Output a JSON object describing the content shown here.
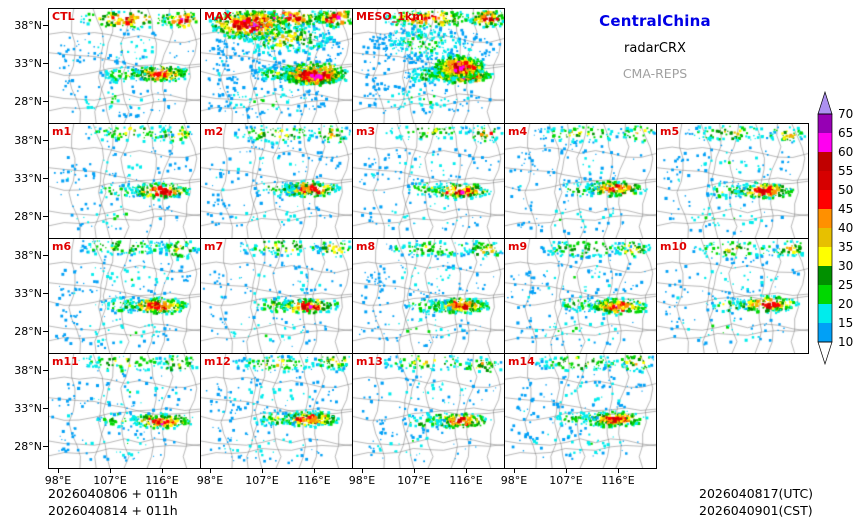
{
  "header": {
    "region": "CentralChina",
    "product": "radarCRX",
    "model": "CMA-REPS",
    "colors": {
      "region": "#0000E6",
      "product": "#000000",
      "model": "#A0A0A0"
    }
  },
  "panels": [
    {
      "label": "CTL",
      "row": 0,
      "col": 0,
      "type": "ctl"
    },
    {
      "label": "MAX",
      "row": 0,
      "col": 1,
      "type": "max"
    },
    {
      "label": "MESO_1km",
      "row": 0,
      "col": 2,
      "type": "meso"
    },
    {
      "label": "m1",
      "row": 1,
      "col": 0,
      "type": "member"
    },
    {
      "label": "m2",
      "row": 1,
      "col": 1,
      "type": "member"
    },
    {
      "label": "m3",
      "row": 1,
      "col": 2,
      "type": "member"
    },
    {
      "label": "m4",
      "row": 1,
      "col": 3,
      "type": "member"
    },
    {
      "label": "m5",
      "row": 1,
      "col": 4,
      "type": "member"
    },
    {
      "label": "m6",
      "row": 2,
      "col": 0,
      "type": "member"
    },
    {
      "label": "m7",
      "row": 2,
      "col": 1,
      "type": "member"
    },
    {
      "label": "m8",
      "row": 2,
      "col": 2,
      "type": "member"
    },
    {
      "label": "m9",
      "row": 2,
      "col": 3,
      "type": "member"
    },
    {
      "label": "m10",
      "row": 2,
      "col": 4,
      "type": "member"
    },
    {
      "label": "m11",
      "row": 3,
      "col": 0,
      "type": "member"
    },
    {
      "label": "m12",
      "row": 3,
      "col": 1,
      "type": "member"
    },
    {
      "label": "m13",
      "row": 3,
      "col": 2,
      "type": "member"
    },
    {
      "label": "m14",
      "row": 3,
      "col": 3,
      "type": "member"
    }
  ],
  "axes": {
    "lat_ticks": [
      "38°N",
      "33°N",
      "28°N"
    ],
    "lon_ticks": [
      "98°E",
      "107°E",
      "116°E"
    ]
  },
  "colorbar": {
    "levels": [
      10,
      15,
      20,
      25,
      30,
      35,
      40,
      45,
      50,
      55,
      60,
      65,
      70
    ],
    "segment_colors_bottom_to_top": [
      "#01A0F6",
      "#00ECEC",
      "#00D800",
      "#019000",
      "#FFFF00",
      "#E7C000",
      "#FF9000",
      "#FF0000",
      "#D60000",
      "#C00000",
      "#FF00F0",
      "#9600B4"
    ],
    "over_color": "#AD90F0",
    "under_color": "#FFFFFF"
  },
  "footer": {
    "init_lines": [
      "2026040806 + 011h",
      "2026040814 + 011h"
    ],
    "valid_lines": [
      "2026040817(UTC)",
      "2026040901(CST)"
    ]
  },
  "styles": {
    "panel_label_color": "#E00000"
  },
  "chart_data": {
    "type": "heatmap",
    "description": "17-panel ensemble composite radar reflectivity forecast over Central China (control, maximum, 1km meso run and members m1–m14); strong convective line with >50 values in the south-central/east of each panel and scattered echoes along the northern edge",
    "panel_labels": [
      "CTL",
      "MAX",
      "MESO_1km",
      "m1",
      "m2",
      "m3",
      "m4",
      "m5",
      "m6",
      "m7",
      "m8",
      "m9",
      "m10",
      "m11",
      "m12",
      "m13",
      "m14"
    ],
    "x_tick_labels": [
      "98°E",
      "107°E",
      "116°E"
    ],
    "y_tick_labels": [
      "38°N",
      "33°N",
      "28°N"
    ],
    "colorbar_levels": [
      10,
      15,
      20,
      25,
      30,
      35,
      40,
      45,
      50,
      55,
      60,
      65,
      70
    ],
    "legend_position": "right"
  }
}
